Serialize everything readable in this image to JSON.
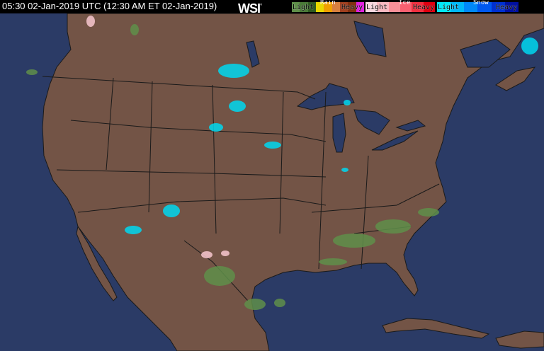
{
  "header": {
    "timestamp": "05:30 02-Jan-2019 UTC  (12:30 AM ET 02-Jan-2019)",
    "logo": "WSI",
    "logo_mark": "°"
  },
  "legend": {
    "rain": {
      "title": "Rain",
      "light": "Light",
      "heavy": "Heavy",
      "colors": [
        "#5f8f4a",
        "#4a7a38",
        "#2f5a22",
        "#e8d800",
        "#f0a000",
        "#d88040",
        "#a04020",
        "#803010",
        "#e020e0"
      ]
    },
    "ice": {
      "title": "Ice",
      "light": "Light",
      "heavy": "Heavy",
      "colors": [
        "#f8d8e0",
        "#f8b8c0",
        "#f89098",
        "#f86070",
        "#f03040",
        "#e00010"
      ]
    },
    "snow": {
      "title": "Snow",
      "light": "Light",
      "heavy": "Heavy",
      "colors": [
        "#00e8f8",
        "#00b8f8",
        "#0088f8",
        "#0058f0",
        "#0030d0",
        "#0010a0"
      ]
    }
  },
  "map": {
    "land_color": "#735446",
    "water_color": "#2b3b66",
    "border_color": "#1a1a1a"
  }
}
